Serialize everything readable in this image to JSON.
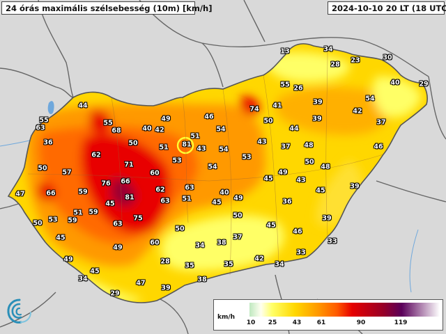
{
  "header": {
    "title": "24 órás maximális szélsebesség (10m) [km/h]",
    "timestamp": "2024-10-10 20 LT (18 UTC)"
  },
  "legend": {
    "unit": "km/h",
    "ticks": [
      "10",
      "25",
      "43",
      "61",
      "90",
      "119"
    ]
  },
  "colors": {
    "background": "#d9d9d9",
    "low": "#ffff66",
    "mid": "#ff9900",
    "high": "#e60000",
    "extreme": "#5a005a"
  },
  "stations": [
    "55",
    "63",
    "44",
    "36",
    "50",
    "57",
    "47",
    "66",
    "62",
    "55",
    "68",
    "71",
    "76",
    "66",
    "59",
    "81",
    "51",
    "45",
    "59",
    "53",
    "50",
    "45",
    "59",
    "49",
    "63",
    "75",
    "62",
    "63",
    "60",
    "50",
    "49",
    "45",
    "34",
    "29",
    "47",
    "28",
    "39",
    "60",
    "40",
    "42",
    "50",
    "51",
    "53",
    "49",
    "81",
    "43",
    "51",
    "46",
    "54",
    "54",
    "53",
    "54",
    "63",
    "51",
    "40",
    "45",
    "49",
    "45",
    "36",
    "45",
    "46",
    "39",
    "43",
    "37",
    "49",
    "43",
    "44",
    "50",
    "48",
    "50",
    "48",
    "45",
    "39",
    "13",
    "34",
    "28",
    "30",
    "23",
    "40",
    "29",
    "55",
    "26",
    "74",
    "41",
    "39",
    "54",
    "42",
    "37",
    "46",
    "33",
    "33",
    "50",
    "34",
    "38",
    "37",
    "35",
    "35",
    "42",
    "34",
    "38",
    "39"
  ]
}
